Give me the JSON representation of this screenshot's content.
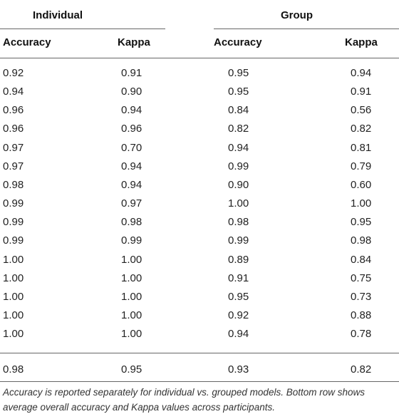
{
  "table": {
    "group_headers": {
      "individual": "Individual",
      "group": "Group"
    },
    "columns": [
      "Accuracy",
      "Kappa",
      "Accuracy",
      "Kappa"
    ],
    "rows": [
      [
        "0.92",
        "0.91",
        "0.95",
        "0.94"
      ],
      [
        "0.94",
        "0.90",
        "0.95",
        "0.91"
      ],
      [
        "0.96",
        "0.94",
        "0.84",
        "0.56"
      ],
      [
        "0.96",
        "0.96",
        "0.82",
        "0.82"
      ],
      [
        "0.97",
        "0.70",
        "0.94",
        "0.81"
      ],
      [
        "0.97",
        "0.94",
        "0.99",
        "0.79"
      ],
      [
        "0.98",
        "0.94",
        "0.90",
        "0.60"
      ],
      [
        "0.99",
        "0.97",
        "1.00",
        "1.00"
      ],
      [
        "0.99",
        "0.98",
        "0.98",
        "0.95"
      ],
      [
        "0.99",
        "0.99",
        "0.99",
        "0.98"
      ],
      [
        "1.00",
        "1.00",
        "0.89",
        "0.84"
      ],
      [
        "1.00",
        "1.00",
        "0.91",
        "0.75"
      ],
      [
        "1.00",
        "1.00",
        "0.95",
        "0.73"
      ],
      [
        "1.00",
        "1.00",
        "0.92",
        "0.88"
      ],
      [
        "1.00",
        "1.00",
        "0.94",
        "0.78"
      ]
    ],
    "average_row": [
      "0.98",
      "0.95",
      "0.93",
      "0.82"
    ],
    "footnote": "Accuracy is reported separately for individual vs. grouped models. Bottom row shows average overall accuracy and Kappa values across participants."
  }
}
